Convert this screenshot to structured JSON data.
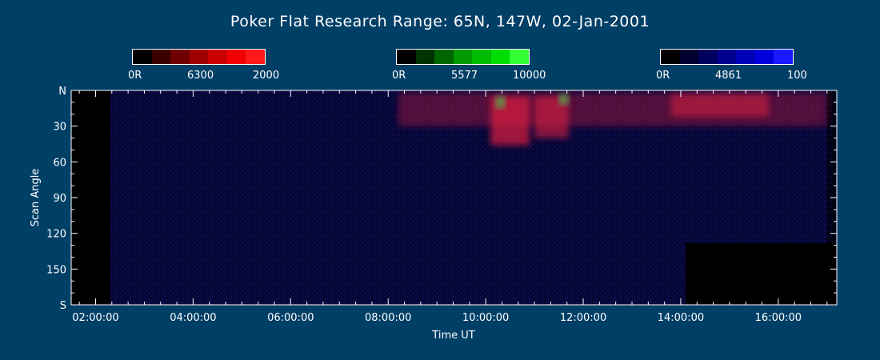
{
  "chart_data": {
    "type": "heatmap",
    "title": "Poker Flat Research Range: 65N, 147W, 02-Jan-2001",
    "xlabel": "Time UT",
    "ylabel": "Scan Angle",
    "x_ticks": [
      "02:00:00",
      "04:00:00",
      "06:00:00",
      "08:00:00",
      "10:00:00",
      "12:00:00",
      "14:00:00",
      "16:00:00"
    ],
    "x_tick_hours": [
      2,
      4,
      6,
      8,
      10,
      12,
      14,
      16
    ],
    "xlim_hours": [
      1.5,
      17.2
    ],
    "y_ticks": [
      "N",
      "30",
      "60",
      "90",
      "120",
      "150",
      "S"
    ],
    "y_tick_values": [
      0,
      30,
      60,
      90,
      120,
      150,
      180
    ],
    "ylim": [
      0,
      180
    ],
    "colorbars": [
      {
        "name": "6300",
        "min_label": "0R",
        "max_label": "2000",
        "colors": [
          "#000000",
          "#3a0000",
          "#6e0000",
          "#a00000",
          "#cc0000",
          "#f00000",
          "#ff1a1a"
        ]
      },
      {
        "name": "5577",
        "min_label": "0R",
        "max_label": "10000",
        "colors": [
          "#000000",
          "#003300",
          "#006600",
          "#009900",
          "#00bb00",
          "#00dd00",
          "#33ff33"
        ]
      },
      {
        "name": "4861",
        "min_label": "0R",
        "max_label": "100",
        "colors": [
          "#000000",
          "#000030",
          "#000060",
          "#000090",
          "#0000bb",
          "#0000dd",
          "#1a1aff"
        ]
      }
    ],
    "series": [
      {
        "name": "6300",
        "color": "#ff2020",
        "features": [
          {
            "t_start": 8.2,
            "t_end": 17.0,
            "angle_start": 2,
            "angle_end": 30,
            "intensity": 0.35
          },
          {
            "t_start": 10.1,
            "t_end": 10.9,
            "angle_start": 5,
            "angle_end": 46,
            "intensity": 0.7
          },
          {
            "t_start": 11.0,
            "t_end": 11.7,
            "angle_start": 5,
            "angle_end": 40,
            "intensity": 0.6
          },
          {
            "t_start": 13.8,
            "t_end": 15.8,
            "angle_start": 3,
            "angle_end": 22,
            "intensity": 0.55
          }
        ]
      },
      {
        "name": "5577",
        "color": "#30ff30",
        "features": [
          {
            "t_start": 10.2,
            "t_end": 10.4,
            "angle_start": 5,
            "angle_end": 15,
            "intensity": 0.6
          },
          {
            "t_start": 11.5,
            "t_end": 11.7,
            "angle_start": 3,
            "angle_end": 12,
            "intensity": 0.6
          }
        ]
      },
      {
        "name": "4861",
        "color": "#2020ff",
        "features": [
          {
            "t_start": 2.3,
            "t_end": 17.0,
            "angle_start": 0,
            "angle_end": 180,
            "intensity": 0.15
          }
        ]
      }
    ],
    "no_data": [
      {
        "t_start": 1.5,
        "t_end": 2.3,
        "angle_start": 0,
        "angle_end": 180
      },
      {
        "t_start": 14.1,
        "t_end": 17.2,
        "angle_start": 128,
        "angle_end": 180
      }
    ]
  }
}
